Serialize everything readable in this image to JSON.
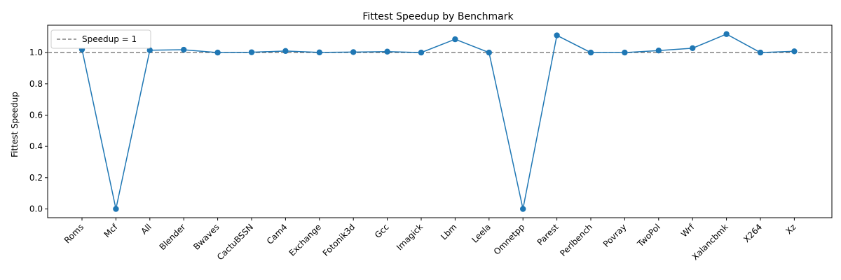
{
  "chart_data": {
    "type": "line",
    "title": "Fittest Speedup by Benchmark",
    "xlabel": "",
    "ylabel": "Fittest Speedup",
    "categories": [
      "Roms",
      "Mcf",
      "All",
      "Blender",
      "Bwaves",
      "CactuBSSN",
      "Cam4",
      "Exchange",
      "Fotonik3d",
      "Gcc",
      "Imagick",
      "Lbm",
      "Leela",
      "Omnetpp",
      "Parest",
      "Perlbench",
      "Povray",
      "TwoPol",
      "Wrf",
      "Xalancbmk",
      "X264",
      "Xz"
    ],
    "series": [
      {
        "values": [
          1.02,
          0.0,
          1.015,
          1.018,
          1.0,
          1.002,
          1.01,
          1.001,
          1.003,
          1.006,
          1.0,
          1.085,
          1.0,
          0.0,
          1.11,
          1.0,
          1.0,
          1.013,
          1.028,
          1.118,
          1.0,
          1.008
        ],
        "color": "#1f77b4"
      }
    ],
    "reference_line": {
      "y": 1.0,
      "label": "Speedup = 1",
      "color": "#808080",
      "style": "dashed"
    },
    "ylim": [
      -0.056,
      1.175
    ],
    "yticks": [
      "0.0",
      "0.2",
      "0.4",
      "0.6",
      "0.8",
      "1.0"
    ],
    "grid": false,
    "legend_position": "top-left"
  }
}
